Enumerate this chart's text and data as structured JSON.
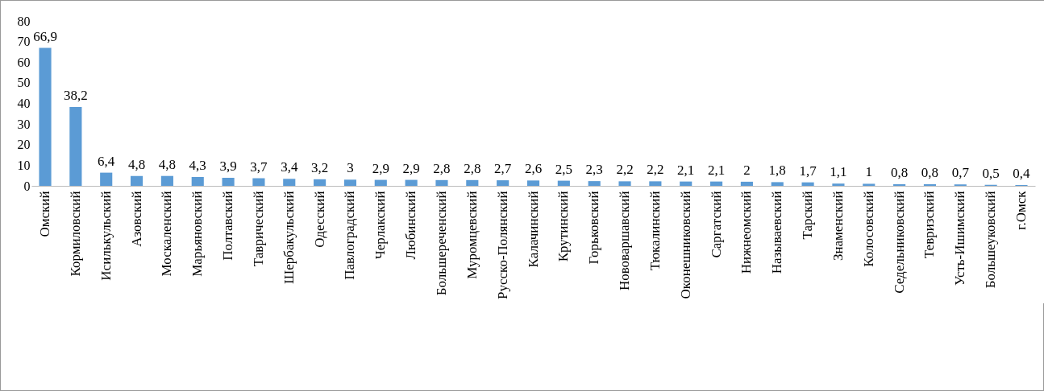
{
  "chart_data": {
    "type": "bar",
    "categories": [
      "Омский",
      "Кормиловский",
      "Исилькульский",
      "Азовский",
      "Москаленский",
      "Марьяновский",
      "Полтавский",
      "Таврический",
      "Шербакульский",
      "Одесский",
      "Павлоградский",
      "Черлакский",
      "Любинский",
      "Большереченский",
      "Муромцевский",
      "Русско-Полянский",
      "Калачинский",
      "Крутинский",
      "Горьковский",
      "Нововаршавский",
      "Тюкалинский",
      "Оконешниковский",
      "Саргатский",
      "Нижнеомский",
      "Называевский",
      "Тарский",
      "Знаменский",
      "Колосовский",
      "Седельниковский",
      "Тевризский",
      "Усть-Ишимский",
      "Большеуковский",
      "г.Омск"
    ],
    "values": [
      66.9,
      38.2,
      6.4,
      4.8,
      4.8,
      4.3,
      3.9,
      3.7,
      3.4,
      3.2,
      3,
      2.9,
      2.9,
      2.8,
      2.8,
      2.7,
      2.6,
      2.5,
      2.3,
      2.2,
      2.2,
      2.1,
      2.1,
      2,
      1.8,
      1.7,
      1.1,
      1,
      0.8,
      0.8,
      0.7,
      0.5,
      0.4
    ],
    "value_labels": [
      "66,9",
      "38,2",
      "6,4",
      "4,8",
      "4,8",
      "4,3",
      "3,9",
      "3,7",
      "3,4",
      "3,2",
      "3",
      "2,9",
      "2,9",
      "2,8",
      "2,8",
      "2,7",
      "2,6",
      "2,5",
      "2,3",
      "2,2",
      "2,2",
      "2,1",
      "2,1",
      "2",
      "1,8",
      "1,7",
      "1,1",
      "1",
      "0,8",
      "0,8",
      "0,7",
      "0,5",
      "0,4"
    ],
    "color": "#5b9bd5",
    "ylim": [
      0,
      80
    ],
    "yticks": [
      0,
      10,
      20,
      30,
      40,
      50,
      60,
      70,
      80
    ],
    "grid": false
  }
}
